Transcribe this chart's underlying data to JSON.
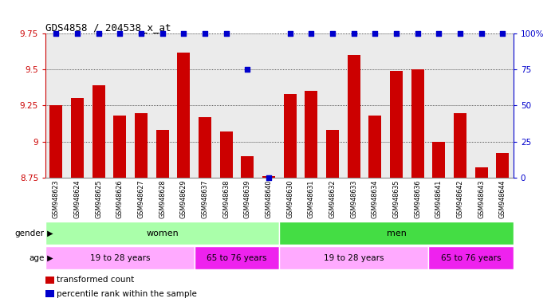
{
  "title": "GDS4858 / 204538_x_at",
  "samples": [
    "GSM948623",
    "GSM948624",
    "GSM948625",
    "GSM948626",
    "GSM948627",
    "GSM948628",
    "GSM948629",
    "GSM948637",
    "GSM948638",
    "GSM948639",
    "GSM948640",
    "GSM948630",
    "GSM948631",
    "GSM948632",
    "GSM948633",
    "GSM948634",
    "GSM948635",
    "GSM948636",
    "GSM948641",
    "GSM948642",
    "GSM948643",
    "GSM948644"
  ],
  "bar_values": [
    9.25,
    9.3,
    9.39,
    9.18,
    9.2,
    9.08,
    9.62,
    9.17,
    9.07,
    8.9,
    8.76,
    9.33,
    9.35,
    9.08,
    9.6,
    9.18,
    9.49,
    9.5,
    9.0,
    9.2,
    8.82,
    8.92
  ],
  "percentile_values": [
    100,
    100,
    100,
    100,
    100,
    100,
    100,
    100,
    100,
    75,
    0,
    100,
    100,
    100,
    100,
    100,
    100,
    100,
    100,
    100,
    100,
    100
  ],
  "ylim_left": [
    8.75,
    9.75
  ],
  "ylim_right": [
    0,
    100
  ],
  "yticks_left": [
    8.75,
    9.0,
    9.25,
    9.5,
    9.75
  ],
  "ytick_labels_left": [
    "8.75",
    "9",
    "9.25",
    "9.5",
    "9.75"
  ],
  "yticks_right": [
    0,
    25,
    50,
    75,
    100
  ],
  "ytick_labels_right": [
    "0",
    "25",
    "50",
    "75",
    "100%"
  ],
  "bar_color": "#CC0000",
  "dot_color": "#0000CC",
  "background_color": "#ffffff",
  "plot_bg_color": "#ebebeb",
  "gender_women_color": "#aaffaa",
  "gender_men_color": "#44dd44",
  "age_young_color": "#ffaaff",
  "age_old_color": "#ee22ee",
  "gender_groups": [
    {
      "label": "women",
      "start": 0,
      "end": 11
    },
    {
      "label": "men",
      "start": 11,
      "end": 22
    }
  ],
  "age_groups": [
    {
      "label": "19 to 28 years",
      "start": 0,
      "end": 7,
      "young": true
    },
    {
      "label": "65 to 76 years",
      "start": 7,
      "end": 11,
      "young": false
    },
    {
      "label": "19 to 28 years",
      "start": 11,
      "end": 18,
      "young": true
    },
    {
      "label": "65 to 76 years",
      "start": 18,
      "end": 22,
      "young": false
    }
  ],
  "legend_items": [
    {
      "label": "transformed count",
      "color": "#CC0000"
    },
    {
      "label": "percentile rank within the sample",
      "color": "#0000CC"
    }
  ]
}
